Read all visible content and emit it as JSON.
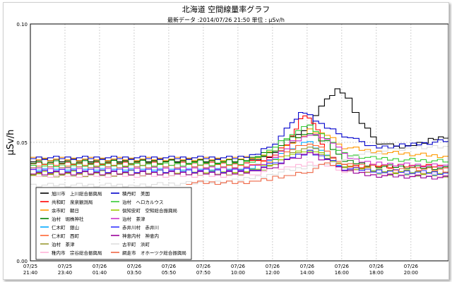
{
  "chart_data": {
    "type": "line",
    "title": "北海道 空間線量率グラフ",
    "subtitle": "最新データ :2014/07/26 21:50   単位 : μSv/h",
    "ylabel": "μSv/h",
    "xlabel": "",
    "ylim": [
      0,
      0.1
    ],
    "y_ticks": [
      0.0,
      0.05,
      0.1
    ],
    "y_tick_labels": [
      "0.00",
      "0.05",
      "0.10"
    ],
    "x_start_hours": 0,
    "x_end_hours": 24.17,
    "x_ticks": [
      {
        "date": "07/25",
        "time": "21:40"
      },
      {
        "date": "07/25",
        "time": "23:40"
      },
      {
        "date": "07/26",
        "time": "01:40"
      },
      {
        "date": "07/26",
        "time": "03:50"
      },
      {
        "date": "07/26",
        "time": "05:50"
      },
      {
        "date": "07/26",
        "time": "07:50"
      },
      {
        "date": "07/26",
        "time": "10:00"
      },
      {
        "date": "07/26",
        "time": "12:00"
      },
      {
        "date": "07/26",
        "time": "14:00"
      },
      {
        "date": "07/26",
        "time": "16:00"
      },
      {
        "date": "07/26",
        "time": "18:00"
      },
      {
        "date": "07/26",
        "time": "20:00"
      }
    ],
    "grid": true,
    "legend_position": "bottom-left",
    "series": [
      {
        "name": "旭川市　上川総合振興局",
        "color": "#000000",
        "values": [
          [
            0,
            0.0425
          ],
          [
            12,
            0.0425
          ],
          [
            13,
            0.043
          ],
          [
            14,
            0.045
          ],
          [
            15,
            0.05
          ],
          [
            16,
            0.058
          ],
          [
            17,
            0.068
          ],
          [
            17.6,
            0.073
          ],
          [
            18.2,
            0.068
          ],
          [
            19,
            0.058
          ],
          [
            20,
            0.05
          ],
          [
            21,
            0.048
          ],
          [
            22,
            0.049
          ],
          [
            23,
            0.051
          ],
          [
            24.17,
            0.053
          ]
        ]
      },
      {
        "name": "共和町　泉泉観測局",
        "color": "#ff0000",
        "values": [
          [
            0,
            0.041
          ],
          [
            12,
            0.041
          ],
          [
            13,
            0.042
          ],
          [
            14,
            0.045
          ],
          [
            15,
            0.052
          ],
          [
            15.5,
            0.06
          ],
          [
            16,
            0.061
          ],
          [
            16.5,
            0.055
          ],
          [
            17,
            0.045
          ],
          [
            18,
            0.04
          ],
          [
            24.17,
            0.04
          ]
        ]
      },
      {
        "name": "余市町　朝日",
        "color": "#ff9900",
        "values": [
          [
            0,
            0.043
          ],
          [
            12,
            0.043
          ],
          [
            13,
            0.044
          ],
          [
            14,
            0.046
          ],
          [
            15,
            0.05
          ],
          [
            16,
            0.055
          ],
          [
            17,
            0.053
          ],
          [
            18,
            0.048
          ],
          [
            20,
            0.046
          ],
          [
            24.17,
            0.044
          ]
        ]
      },
      {
        "name": "泊村　堀株神社",
        "color": "#008000",
        "values": [
          [
            0,
            0.0415
          ],
          [
            12,
            0.042
          ],
          [
            13,
            0.044
          ],
          [
            14,
            0.047
          ],
          [
            15,
            0.052
          ],
          [
            16,
            0.054
          ],
          [
            17,
            0.05
          ],
          [
            18,
            0.042
          ],
          [
            20,
            0.04
          ],
          [
            24.17,
            0.039
          ]
        ]
      },
      {
        "name": "仁木町　銀山",
        "color": "#00aaff",
        "values": [
          [
            0,
            0.039
          ],
          [
            12,
            0.039
          ],
          [
            13,
            0.04
          ],
          [
            14,
            0.043
          ],
          [
            15,
            0.048
          ],
          [
            16,
            0.05
          ],
          [
            17,
            0.045
          ],
          [
            18,
            0.039
          ],
          [
            20,
            0.037
          ],
          [
            24.17,
            0.036
          ]
        ]
      },
      {
        "name": "仁木町　西町",
        "color": "#ff6633",
        "values": [
          [
            0,
            0.04
          ],
          [
            12,
            0.04
          ],
          [
            13,
            0.041
          ],
          [
            14,
            0.043
          ],
          [
            15,
            0.047
          ],
          [
            16,
            0.05
          ],
          [
            17,
            0.046
          ],
          [
            18,
            0.04
          ],
          [
            20,
            0.038
          ],
          [
            24.17,
            0.037
          ]
        ]
      },
      {
        "name": "泊村　茶津",
        "color": "#999933",
        "values": [
          [
            0,
            0.036
          ],
          [
            12,
            0.037
          ],
          [
            13,
            0.038
          ],
          [
            14,
            0.041
          ],
          [
            15,
            0.045
          ],
          [
            16,
            0.048
          ],
          [
            17,
            0.044
          ],
          [
            18,
            0.039
          ],
          [
            20,
            0.037
          ],
          [
            24.17,
            0.036
          ]
        ]
      },
      {
        "name": "稚内市　宗谷総合振興局",
        "color": "#ffb3d9",
        "values": [
          [
            0,
            0.036
          ],
          [
            12,
            0.036
          ],
          [
            13,
            0.037
          ],
          [
            14,
            0.039
          ],
          [
            15,
            0.04
          ],
          [
            16,
            0.041
          ],
          [
            17,
            0.04
          ],
          [
            18,
            0.038
          ],
          [
            20,
            0.037
          ],
          [
            24.17,
            0.036
          ]
        ]
      },
      {
        "name": "積丹町　美国",
        "color": "#0000cc",
        "values": [
          [
            0,
            0.0435
          ],
          [
            12,
            0.0435
          ],
          [
            13,
            0.045
          ],
          [
            14,
            0.05
          ],
          [
            15,
            0.058
          ],
          [
            15.5,
            0.063
          ],
          [
            16,
            0.061
          ],
          [
            17,
            0.056
          ],
          [
            18,
            0.053
          ],
          [
            19,
            0.05
          ],
          [
            20,
            0.048
          ],
          [
            22,
            0.049
          ],
          [
            24.17,
            0.051
          ]
        ]
      },
      {
        "name": "泊村　ヘロカルウス",
        "color": "#33cc33",
        "values": [
          [
            0,
            0.04
          ],
          [
            12,
            0.041
          ],
          [
            13,
            0.043
          ],
          [
            14,
            0.048
          ],
          [
            15,
            0.054
          ],
          [
            16,
            0.057
          ],
          [
            17,
            0.052
          ],
          [
            18,
            0.045
          ],
          [
            20,
            0.043
          ],
          [
            24.17,
            0.042
          ]
        ]
      },
      {
        "name": "倶知安町　空知総合振興局",
        "color": "#99cc00",
        "values": [
          [
            0,
            0.037
          ],
          [
            12,
            0.038
          ],
          [
            13,
            0.039
          ],
          [
            14,
            0.042
          ],
          [
            15,
            0.045
          ],
          [
            16,
            0.047
          ],
          [
            17,
            0.044
          ],
          [
            18,
            0.04
          ],
          [
            20,
            0.038
          ],
          [
            24.17,
            0.037
          ]
        ]
      },
      {
        "name": "泊村　茶津",
        "color": "#cc33cc",
        "values": [
          [
            0,
            0.0385
          ],
          [
            12,
            0.039
          ],
          [
            13,
            0.04
          ],
          [
            14,
            0.044
          ],
          [
            15,
            0.05
          ],
          [
            16,
            0.053
          ],
          [
            17,
            0.052
          ],
          [
            18,
            0.045
          ],
          [
            19,
            0.042
          ],
          [
            20,
            0.041
          ],
          [
            24.17,
            0.04
          ]
        ]
      },
      {
        "name": "赤井川村　赤井川",
        "color": "#3333ff",
        "values": [
          [
            0,
            0.038
          ],
          [
            12,
            0.038
          ],
          [
            13,
            0.039
          ],
          [
            14,
            0.041
          ],
          [
            15,
            0.044
          ],
          [
            16,
            0.046
          ],
          [
            17,
            0.043
          ],
          [
            18,
            0.039
          ],
          [
            20,
            0.038
          ],
          [
            24.17,
            0.037
          ]
        ]
      },
      {
        "name": "神恵内村　神恵内",
        "color": "#990099",
        "values": [
          [
            0,
            0.037
          ],
          [
            12,
            0.037
          ],
          [
            13,
            0.038
          ],
          [
            14,
            0.04
          ],
          [
            15,
            0.043
          ],
          [
            16,
            0.046
          ],
          [
            17,
            0.042
          ],
          [
            18,
            0.038
          ],
          [
            20,
            0.036
          ],
          [
            24.17,
            0.035
          ]
        ]
      },
      {
        "name": "古平町　浜町",
        "color": "#dddddd",
        "values": [
          [
            0,
            0.032
          ],
          [
            6,
            0.032
          ],
          [
            10,
            0.033
          ],
          [
            12,
            0.034
          ],
          [
            14,
            0.037
          ],
          [
            16,
            0.04
          ],
          [
            17,
            0.041
          ],
          [
            18,
            0.042
          ],
          [
            19,
            0.045
          ],
          [
            20,
            0.046
          ],
          [
            21,
            0.047
          ],
          [
            22,
            0.048
          ],
          [
            24.17,
            0.048
          ]
        ]
      },
      {
        "name": "網走市　オホーツク総合振興局",
        "color": "#ee6644",
        "values": [
          [
            9,
            0.033
          ],
          [
            12,
            0.033
          ],
          [
            13,
            0.034
          ],
          [
            14,
            0.035
          ],
          [
            15,
            0.036
          ],
          [
            16,
            0.038
          ],
          [
            17,
            0.041
          ],
          [
            18,
            0.041
          ],
          [
            19,
            0.04
          ],
          [
            20,
            0.04
          ],
          [
            21,
            0.039
          ],
          [
            22,
            0.039
          ],
          [
            24.17,
            0.038
          ]
        ]
      }
    ]
  }
}
